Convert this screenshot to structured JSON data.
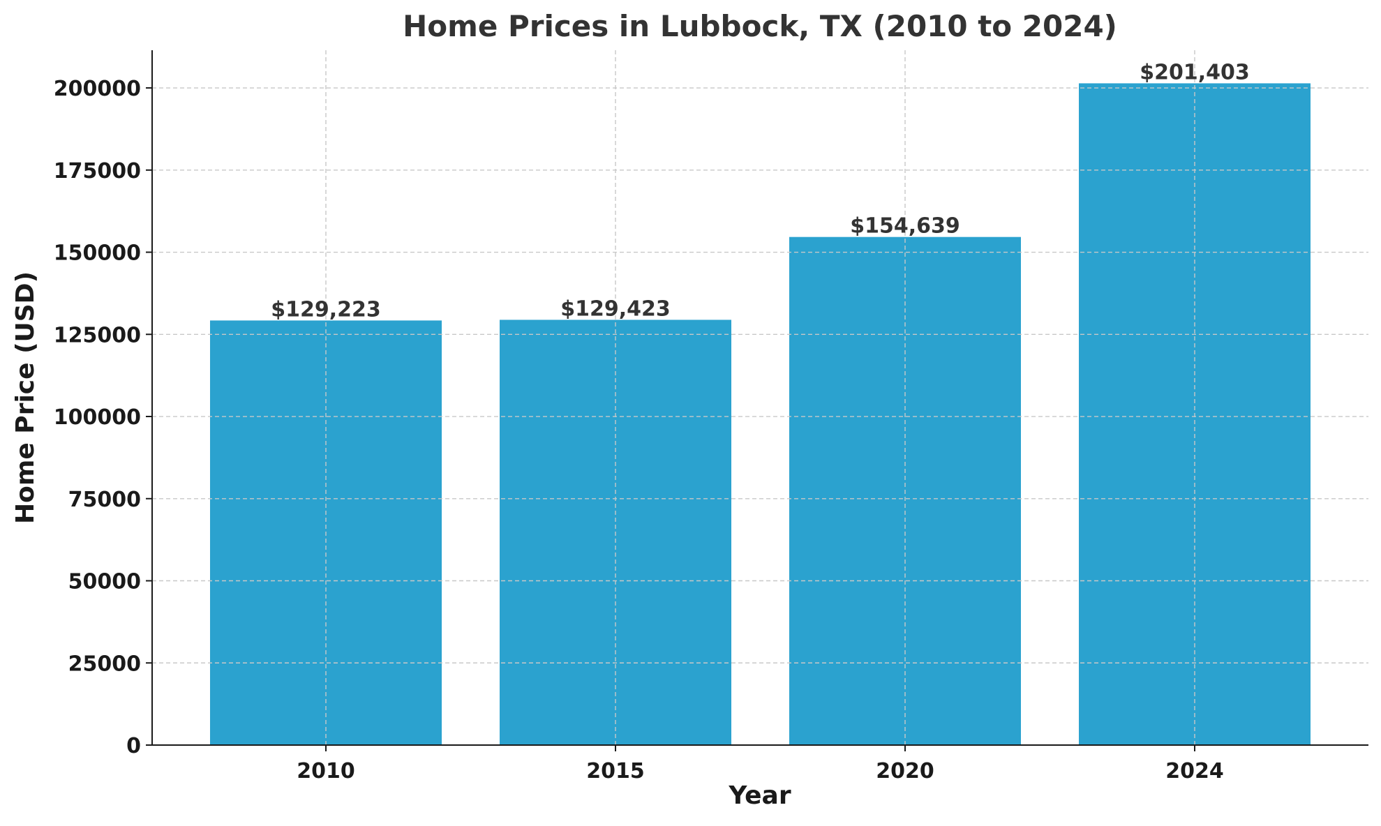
{
  "chart_data": {
    "type": "bar",
    "title": "Home Prices in Lubbock, TX (2010 to 2024)",
    "xlabel": "Year",
    "ylabel": "Home Price (USD)",
    "categories": [
      "2010",
      "2015",
      "2020",
      "2024"
    ],
    "values": [
      129223,
      129423,
      154639,
      201403
    ],
    "data_labels": [
      "$129,223",
      "$129,423",
      "$154,639",
      "$201,403"
    ],
    "ylim": [
      0,
      211473
    ],
    "yticks": [
      0,
      25000,
      50000,
      75000,
      100000,
      125000,
      150000,
      175000,
      200000
    ],
    "ytick_labels": [
      "0",
      "25000",
      "50000",
      "75000",
      "100000",
      "125000",
      "150000",
      "175000",
      "200000"
    ],
    "bar_color": "#2ba2cf",
    "grid": true,
    "legend": "none"
  }
}
